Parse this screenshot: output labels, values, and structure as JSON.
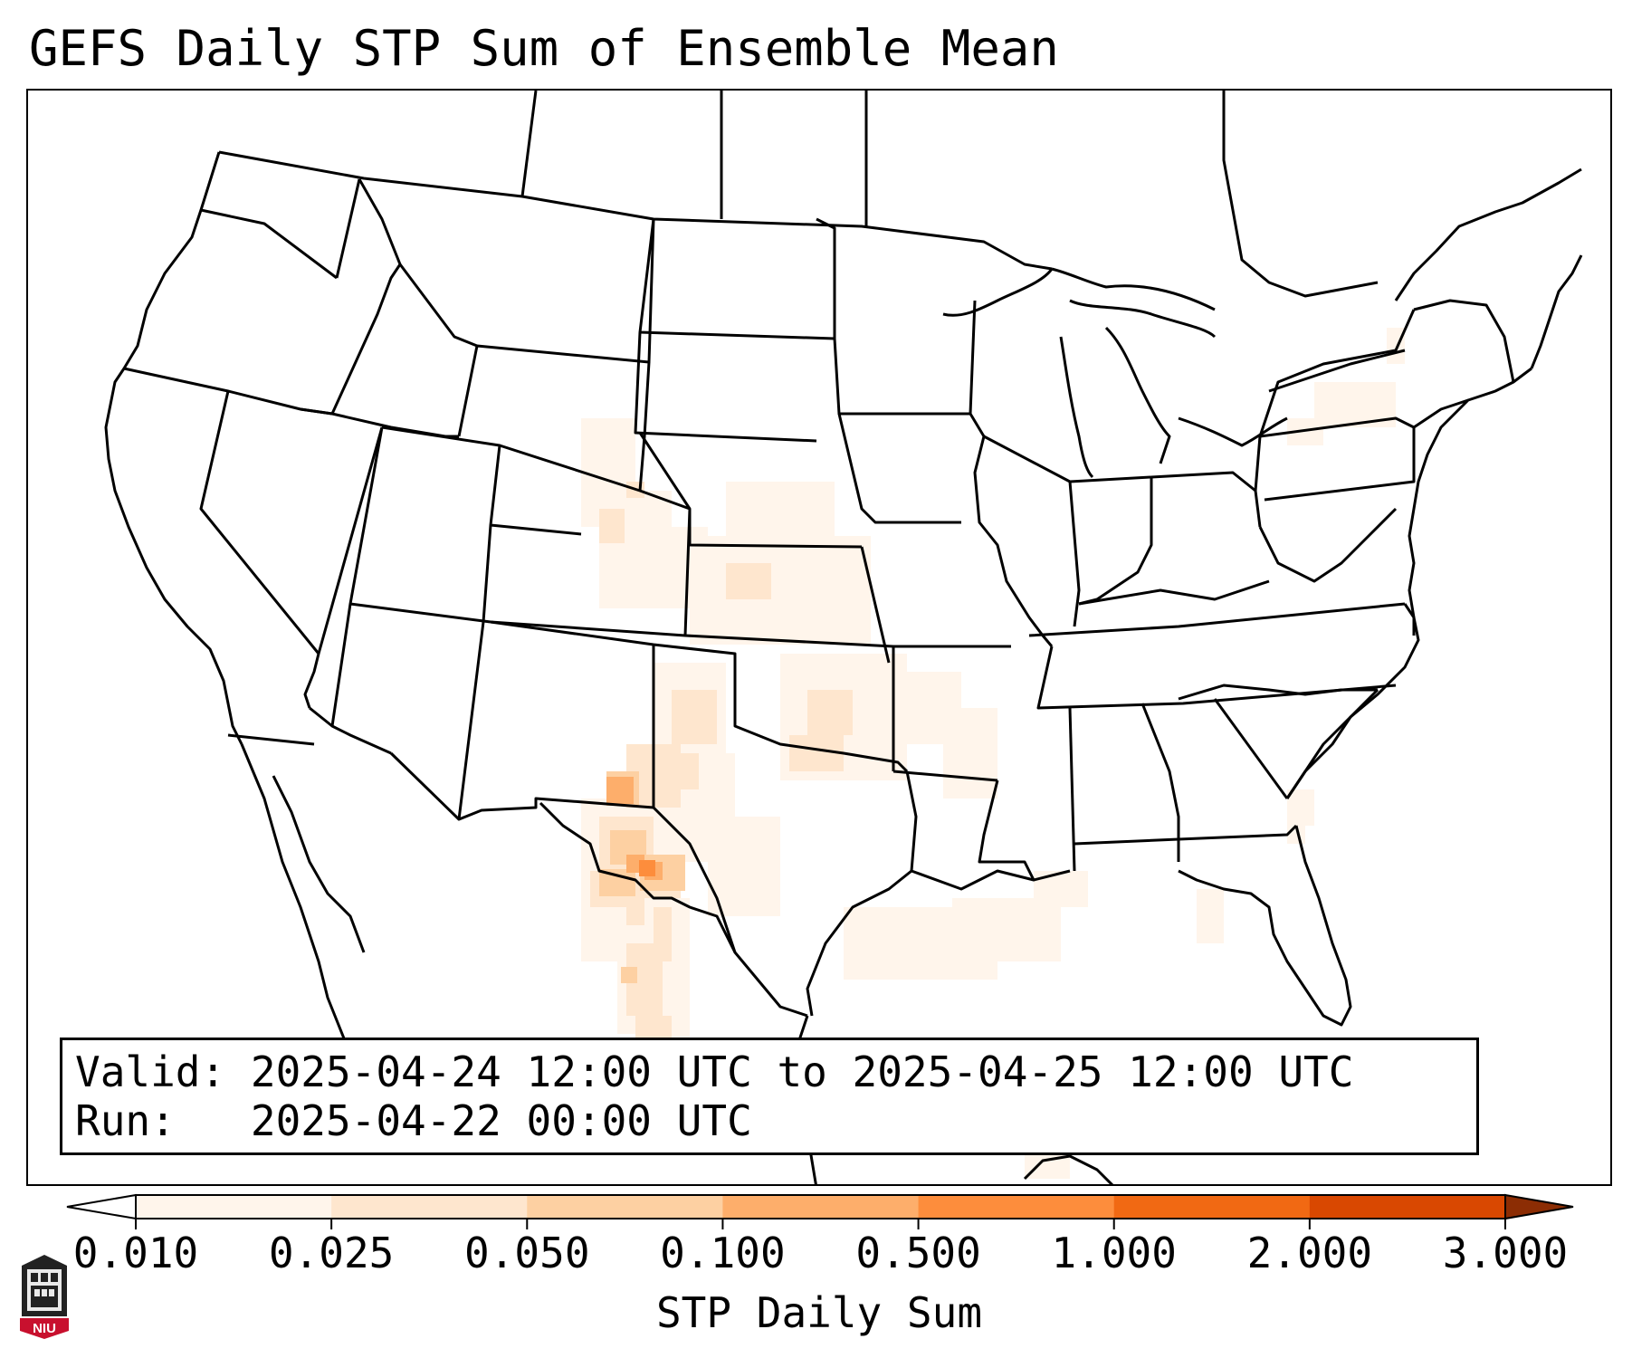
{
  "title": "GEFS Daily STP Sum of Ensemble Mean",
  "info": {
    "valid_key": "Valid:",
    "valid_value": "2025-04-24 12:00 UTC to 2025-04-25 12:00 UTC",
    "run_key": "Run:",
    "run_value": "2025-04-22 00:00 UTC"
  },
  "colorbar": {
    "label": "STP Daily Sum",
    "levels": [
      "0.010",
      "0.025",
      "0.050",
      "0.100",
      "0.500",
      "1.000",
      "2.000",
      "3.000"
    ],
    "colors": [
      "#fff5eb",
      "#fee6ce",
      "#fdd0a2",
      "#fdae6b",
      "#fd8d3c",
      "#f16913",
      "#d94801",
      "#8c2d04"
    ]
  },
  "map": {
    "projection": "lambert-conformal",
    "region": "CONUS",
    "field_areas": [
      {
        "name": "colorado-front-range",
        "level": "0.010-0.025"
      },
      {
        "name": "kansas-oklahoma",
        "level": "0.010-0.050"
      },
      {
        "name": "west-texas-permian-basin",
        "level": "0.050-0.500"
      },
      {
        "name": "rio-grande-mexico",
        "level": "0.050-0.500"
      },
      {
        "name": "gulf-coast",
        "level": "0.010-0.025"
      },
      {
        "name": "new-york",
        "level": "0.010"
      }
    ]
  },
  "logo": {
    "text": "NIU"
  }
}
